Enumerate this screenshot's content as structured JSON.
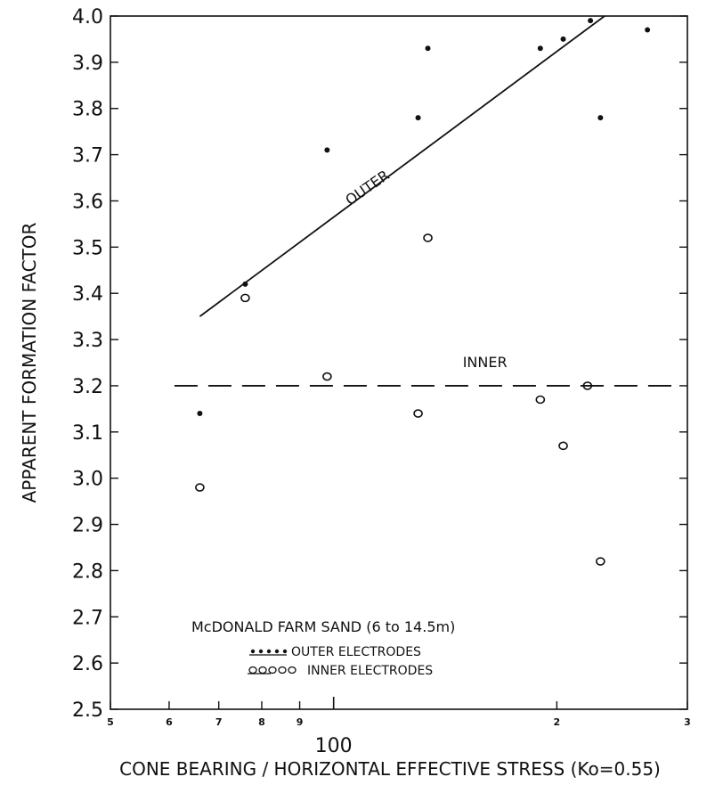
{
  "chart_data": {
    "type": "scatter",
    "title": "",
    "xlabel": "CONE BEARING / HORIZONTAL EFFECTIVE STRESS (Ko=0.55)",
    "ylabel": "APPARENT FORMATION FACTOR",
    "x_scale": "log",
    "xlim": [
      50,
      300
    ],
    "ylim": [
      2.5,
      4.0
    ],
    "y_ticks": [
      "2.5",
      "2.6",
      "2.7",
      "2.8",
      "2.9",
      "3.0",
      "3.1",
      "3.2",
      "3.3",
      "3.4",
      "3.5",
      "3.6",
      "3.7",
      "3.8",
      "3.9",
      "4.0"
    ],
    "x_ticks": [
      {
        "value": 50,
        "label": "5"
      },
      {
        "value": 60,
        "label": "6"
      },
      {
        "value": 70,
        "label": "7"
      },
      {
        "value": 80,
        "label": "8"
      },
      {
        "value": 90,
        "label": "9"
      },
      {
        "value": 200,
        "label": "2"
      },
      {
        "value": 300,
        "label": "3"
      }
    ],
    "x_decade_label": {
      "value": 100,
      "label": "100"
    },
    "series": [
      {
        "name": "OUTER ELECTRODES",
        "marker": "dot",
        "points": [
          [
            66,
            3.14
          ],
          [
            76,
            3.42
          ],
          [
            98,
            3.71
          ],
          [
            130,
            3.78
          ],
          [
            134,
            3.93
          ],
          [
            190,
            3.93
          ],
          [
            204,
            3.95
          ],
          [
            222,
            3.99
          ],
          [
            229,
            3.78
          ],
          [
            265,
            3.97
          ]
        ]
      },
      {
        "name": "INNER ELECTRODES",
        "marker": "circle",
        "points": [
          [
            66,
            2.98
          ],
          [
            76,
            3.39
          ],
          [
            98,
            3.22
          ],
          [
            130,
            3.14
          ],
          [
            134,
            3.52
          ],
          [
            190,
            3.17
          ],
          [
            204,
            3.07
          ],
          [
            220,
            3.2
          ],
          [
            229,
            2.82
          ]
        ]
      }
    ],
    "fit_lines": [
      {
        "label": "OUTER",
        "style": "solid",
        "points": [
          [
            66,
            3.35
          ],
          [
            232,
            4.0
          ]
        ]
      },
      {
        "label": "INNER",
        "style": "dashed",
        "points": [
          [
            61,
            3.2
          ],
          [
            295,
            3.2
          ]
        ]
      }
    ],
    "annotations": [
      {
        "text": "OUTER",
        "x": 112,
        "y": 3.62
      },
      {
        "text": "INNER",
        "x": 160,
        "y": 3.24
      }
    ],
    "legend": {
      "title": "McDONALD FARM SAND (6 to 14.5m)",
      "entries": [
        "OUTER ELECTRODES",
        "INNER ELECTRODES"
      ],
      "placement": "bottom-center"
    }
  }
}
